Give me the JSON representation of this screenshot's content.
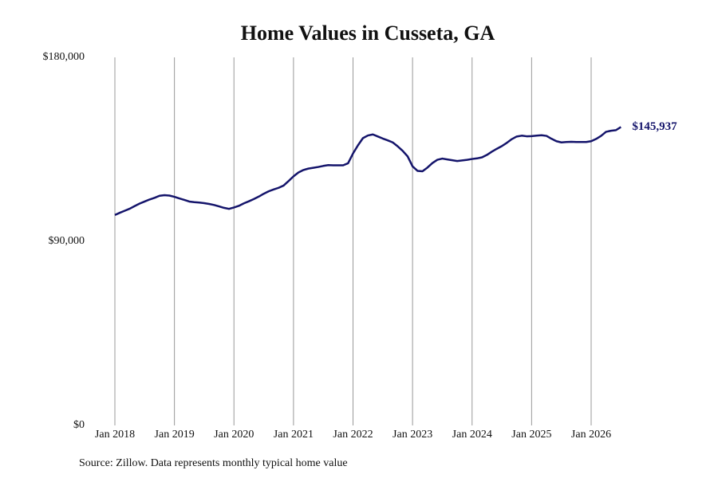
{
  "chart_data": {
    "type": "line",
    "title": "Home Values in Cusseta, GA",
    "source": "Source: Zillow. Data represents monthly typical home value",
    "color": "#14146b",
    "x": [
      "2018-01",
      "2018-02",
      "2018-03",
      "2018-04",
      "2018-05",
      "2018-06",
      "2018-07",
      "2018-08",
      "2018-09",
      "2018-10",
      "2018-11",
      "2018-12",
      "2019-01",
      "2019-02",
      "2019-03",
      "2019-04",
      "2019-05",
      "2019-06",
      "2019-07",
      "2019-08",
      "2019-09",
      "2019-10",
      "2019-11",
      "2019-12",
      "2020-01",
      "2020-02",
      "2020-03",
      "2020-04",
      "2020-05",
      "2020-06",
      "2020-07",
      "2020-08",
      "2020-09",
      "2020-10",
      "2020-11",
      "2020-12",
      "2021-01",
      "2021-02",
      "2021-03",
      "2021-04",
      "2021-05",
      "2021-06",
      "2021-07",
      "2021-08",
      "2021-09",
      "2021-10",
      "2021-11",
      "2021-12",
      "2022-01",
      "2022-02",
      "2022-03",
      "2022-04",
      "2022-05",
      "2022-06",
      "2022-07",
      "2022-08",
      "2022-09",
      "2022-10",
      "2022-11",
      "2022-12",
      "2023-01",
      "2023-02",
      "2023-03",
      "2023-04",
      "2023-05",
      "2023-06",
      "2023-07",
      "2023-08",
      "2023-09",
      "2023-10",
      "2023-11",
      "2023-12",
      "2024-01",
      "2024-02",
      "2024-03",
      "2024-04",
      "2024-05",
      "2024-06",
      "2024-07",
      "2024-08",
      "2024-09",
      "2024-10",
      "2024-11",
      "2024-12",
      "2025-01",
      "2025-02",
      "2025-03",
      "2025-04",
      "2025-05",
      "2025-06",
      "2025-07",
      "2025-08",
      "2025-09",
      "2025-10",
      "2025-11",
      "2025-12",
      "2026-01",
      "2026-02",
      "2026-03",
      "2026-04",
      "2026-05",
      "2026-06",
      "2026-07"
    ],
    "values": [
      102900,
      104000,
      105000,
      106000,
      107300,
      108500,
      109500,
      110500,
      111300,
      112300,
      112600,
      112400,
      111800,
      111000,
      110300,
      109500,
      109200,
      109000,
      108700,
      108300,
      107800,
      107100,
      106400,
      105900,
      106600,
      107400,
      108600,
      109600,
      110700,
      111900,
      113300,
      114500,
      115400,
      116200,
      117300,
      119500,
      121800,
      123700,
      124900,
      125600,
      126000,
      126400,
      126900,
      127300,
      127200,
      127200,
      127200,
      128200,
      133000,
      137000,
      140500,
      141800,
      142300,
      141300,
      140300,
      139400,
      138400,
      136500,
      134300,
      131600,
      126700,
      124500,
      124300,
      126100,
      128300,
      129900,
      130500,
      130100,
      129700,
      129300,
      129600,
      129900,
      130300,
      130600,
      131100,
      132300,
      133900,
      135300,
      136600,
      138200,
      140000,
      141300,
      141700,
      141400,
      141500,
      141700,
      141900,
      141600,
      140200,
      139000,
      138400,
      138600,
      138700,
      138600,
      138600,
      138600,
      139000,
      140100,
      141600,
      143600,
      144100,
      144400,
      145937
    ],
    "value_labels": [
      null,
      null,
      null,
      null,
      null,
      null,
      null,
      null,
      null,
      null,
      null,
      null,
      null,
      null,
      null,
      null,
      null,
      null,
      null,
      null,
      null,
      null,
      null,
      null,
      null,
      null,
      null,
      null,
      null,
      null,
      null,
      null,
      null,
      null,
      null,
      null,
      null,
      null,
      null,
      null,
      null,
      null,
      null,
      null,
      null,
      null,
      null,
      null,
      null,
      null,
      null,
      null,
      null,
      null,
      null,
      null,
      null,
      null,
      null,
      null,
      null,
      null,
      null,
      null,
      null,
      null,
      null,
      null,
      null,
      null,
      null,
      null,
      null,
      null,
      null,
      null,
      null,
      null,
      null,
      null,
      null,
      null,
      null,
      null,
      null,
      null,
      null,
      null,
      null,
      null,
      null,
      null,
      null,
      null,
      null,
      null,
      null,
      null,
      null,
      null,
      null,
      null,
      "$145,937"
    ],
    "xticks": [
      {
        "value": "2018-01",
        "label": "Jan 2018"
      },
      {
        "value": "2019-01",
        "label": "Jan 2019"
      },
      {
        "value": "2020-01",
        "label": "Jan 2020"
      },
      {
        "value": "2021-01",
        "label": "Jan 2021"
      },
      {
        "value": "2022-01",
        "label": "Jan 2022"
      },
      {
        "value": "2023-01",
        "label": "Jan 2023"
      },
      {
        "value": "2024-01",
        "label": "Jan 2024"
      },
      {
        "value": "2025-01",
        "label": "Jan 2025"
      },
      {
        "value": "2026-01",
        "label": "Jan 2026"
      }
    ],
    "ylim": [
      0,
      180000
    ],
    "yticks": [
      {
        "value": 0,
        "label": "$0"
      },
      {
        "value": 90000,
        "label": "$90,000"
      },
      {
        "value": 180000,
        "label": "$180,000"
      }
    ],
    "grid": true
  }
}
